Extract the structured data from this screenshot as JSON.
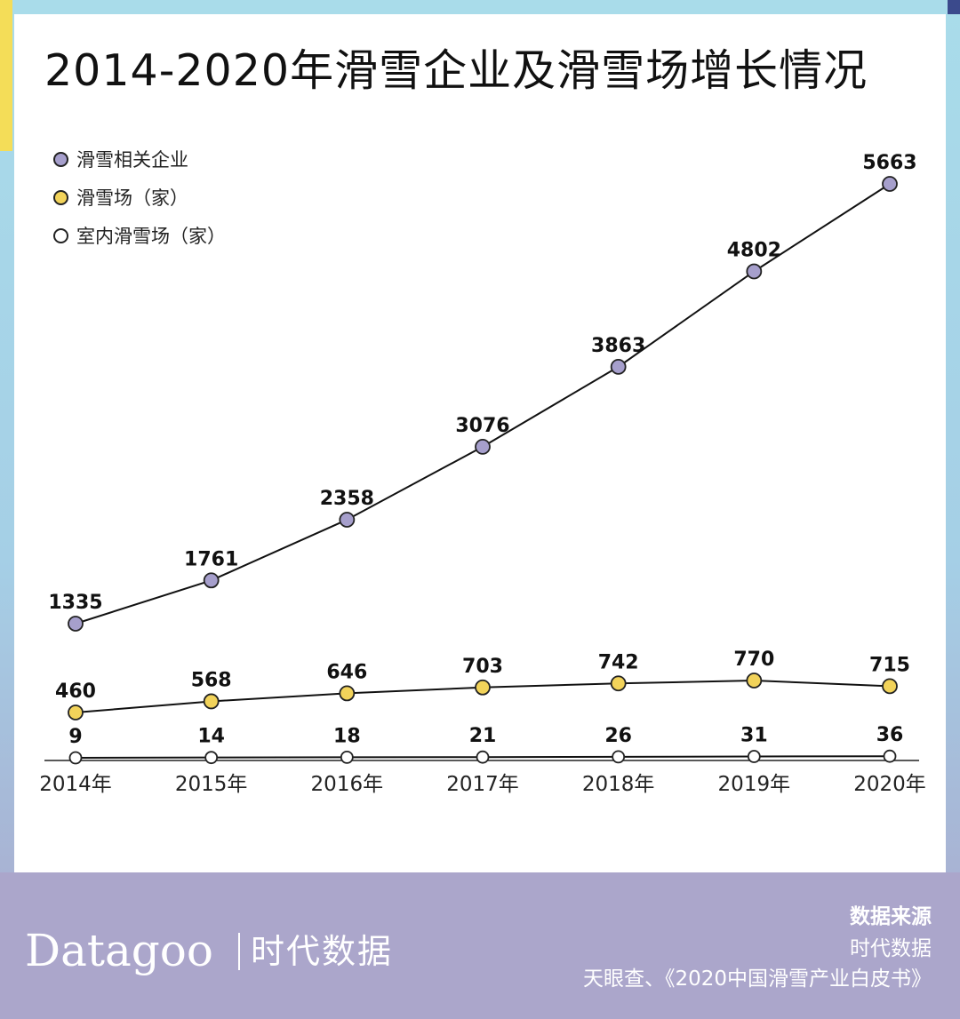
{
  "title": "2014-2020年滑雪企业及滑雪场增长情况",
  "colors": {
    "frame_top": "#a9dcea",
    "frame_bottom": "#a9a6cb",
    "accent_yellow": "#f4dd58",
    "accent_navy": "#3b4a8c",
    "series_enterprise": "#a69fcc",
    "series_resort": "#f2d35a",
    "series_indoor": "#ffffff",
    "line": "#111111"
  },
  "chart_data": {
    "type": "line",
    "title": "2014-2020年滑雪企业及滑雪场增长情况",
    "categories": [
      "2014年",
      "2015年",
      "2016年",
      "2017年",
      "2018年",
      "2019年",
      "2020年"
    ],
    "xlabel": "",
    "ylabel": "",
    "grid": false,
    "legend_position": "top-left",
    "series": [
      {
        "name": "滑雪相关企业",
        "color": "#a69fcc",
        "values": [
          1335,
          1761,
          2358,
          3076,
          3863,
          4802,
          5663
        ]
      },
      {
        "name": "滑雪场（家）",
        "color": "#f2d35a",
        "values": [
          460,
          568,
          646,
          703,
          742,
          770,
          715
        ]
      },
      {
        "name": "室内滑雪场（家）",
        "color": "#ffffff",
        "values": [
          9,
          14,
          18,
          21,
          26,
          31,
          36
        ]
      }
    ]
  },
  "legend": [
    {
      "label": "滑雪相关企业",
      "icon": "purple-dot-icon",
      "color": "#a69fcc"
    },
    {
      "label": "滑雪场（家）",
      "icon": "yellow-dot-icon",
      "color": "#f2d35a"
    },
    {
      "label": "室内滑雪场（家）",
      "icon": "white-dot-icon",
      "color": "#ffffff"
    }
  ],
  "footer": {
    "brand_latin": "Datagoo",
    "brand_cn": "时代数据",
    "source_label": "数据来源",
    "source_line1": "时代数据",
    "source_line2": "天眼查、《2020中国滑雪产业白皮书》"
  }
}
